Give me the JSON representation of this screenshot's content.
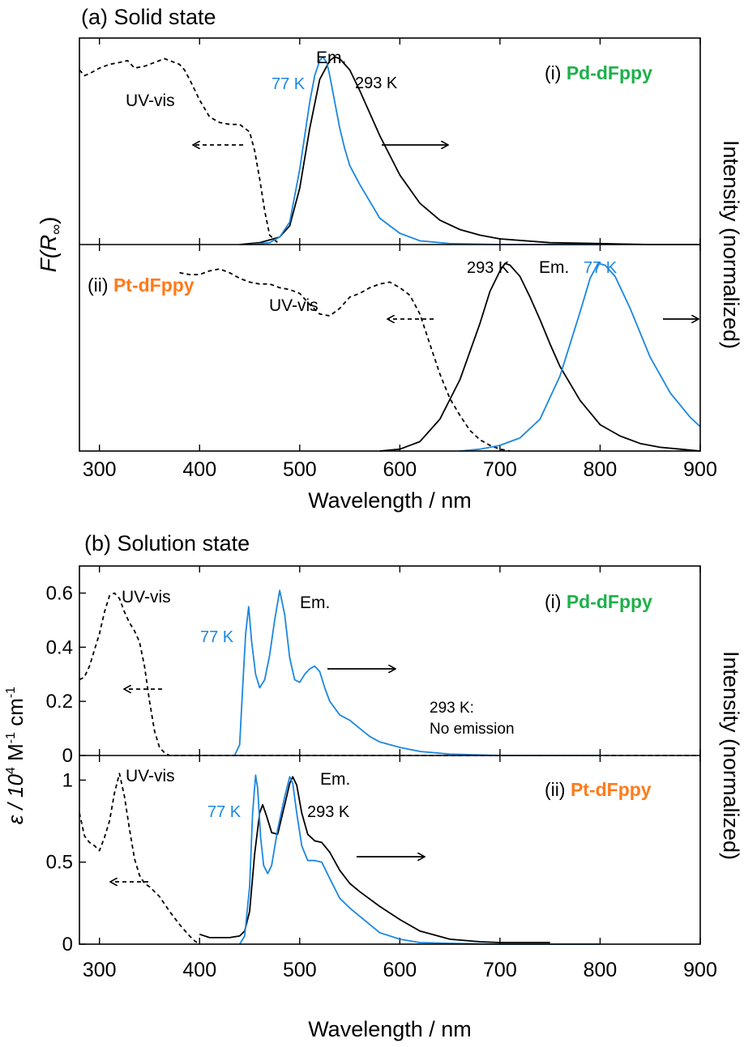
{
  "colors": {
    "blue": "#1b87e0",
    "black": "#000000",
    "green": "#1fb04b",
    "orange": "#ff7a1a"
  },
  "chart_data": [
    {
      "type": "line",
      "panel_title": "(a) Solid state",
      "xlabel": "Wavelength / nm",
      "left_ylabel_prefix": "F(R",
      "left_ylabel_subscript": "∞",
      "left_ylabel_suffix": ")",
      "right_ylabel": "Intensity (normalized)",
      "xlim": [
        280,
        900
      ],
      "xticks": [
        300,
        400,
        500,
        600,
        700,
        800,
        900
      ],
      "grid": false,
      "subplots": [
        {
          "label_prefix": "(i) ",
          "label_name": "Pd-dFppy",
          "label_color": "green",
          "annotations": {
            "em": "Em.",
            "t77": "77 K",
            "t293": "293 K",
            "uvvis": "UV-vis"
          },
          "series": [
            {
              "style": "dashed",
              "color": "black",
              "x": [
                280,
                285,
                290,
                300,
                310,
                320,
                328,
                335,
                345,
                355,
                365,
                370,
                380,
                385,
                390,
                400,
                410,
                420,
                430,
                440,
                450,
                455,
                460,
                465,
                470,
                480
              ],
              "y": [
                0.93,
                0.9,
                0.91,
                0.94,
                0.96,
                0.97,
                0.98,
                0.94,
                0.95,
                0.97,
                0.99,
                0.98,
                0.96,
                0.93,
                0.88,
                0.77,
                0.68,
                0.65,
                0.64,
                0.64,
                0.6,
                0.5,
                0.35,
                0.18,
                0.05,
                0.0
              ]
            },
            {
              "style": "solid",
              "color": "black",
              "x": [
                440,
                460,
                480,
                490,
                500,
                510,
                520,
                530,
                535,
                540,
                550,
                560,
                580,
                600,
                620,
                640,
                660,
                680,
                700,
                750,
                800,
                850,
                900
              ],
              "y": [
                0,
                0.01,
                0.04,
                0.1,
                0.3,
                0.62,
                0.88,
                0.98,
                1.0,
                0.99,
                0.93,
                0.82,
                0.58,
                0.37,
                0.22,
                0.13,
                0.08,
                0.05,
                0.03,
                0.01,
                0.005,
                0,
                0
              ]
            },
            {
              "style": "solid",
              "color": "blue",
              "x": [
                450,
                470,
                480,
                490,
                500,
                505,
                510,
                515,
                520,
                523,
                527,
                530,
                535,
                540,
                545,
                550,
                560,
                570,
                580,
                600,
                620,
                650,
                700,
                800
              ],
              "y": [
                0,
                0.01,
                0.04,
                0.12,
                0.4,
                0.58,
                0.76,
                0.9,
                0.98,
                1.0,
                0.97,
                0.9,
                0.76,
                0.62,
                0.51,
                0.42,
                0.32,
                0.23,
                0.14,
                0.06,
                0.02,
                0.005,
                0,
                0
              ]
            }
          ]
        },
        {
          "label_prefix": "(ii) ",
          "label_name": "Pt-dFppy",
          "label_color": "orange",
          "annotations": {
            "em": "Em.",
            "t77": "77 K",
            "t293": "293 K",
            "uvvis": "UV-vis"
          },
          "series": [
            {
              "style": "dashed",
              "color": "black",
              "x": [
                380,
                390,
                400,
                410,
                420,
                430,
                440,
                450,
                460,
                470,
                480,
                490,
                500,
                510,
                520,
                530,
                540,
                550,
                560,
                570,
                580,
                590,
                600,
                610,
                620,
                630,
                640,
                650,
                660,
                670,
                680,
                690,
                700,
                710
              ],
              "y": [
                0.95,
                0.94,
                0.94,
                0.96,
                0.97,
                0.95,
                0.92,
                0.9,
                0.89,
                0.89,
                0.87,
                0.86,
                0.84,
                0.78,
                0.73,
                0.72,
                0.76,
                0.82,
                0.84,
                0.87,
                0.89,
                0.9,
                0.87,
                0.83,
                0.73,
                0.57,
                0.41,
                0.28,
                0.19,
                0.11,
                0.06,
                0.03,
                0.01,
                0
              ]
            },
            {
              "style": "solid",
              "color": "black",
              "x": [
                580,
                600,
                620,
                640,
                660,
                680,
                690,
                700,
                705,
                710,
                720,
                730,
                740,
                750,
                760,
                780,
                800,
                820,
                840,
                860,
                880,
                900
              ],
              "y": [
                0,
                0.01,
                0.05,
                0.17,
                0.38,
                0.68,
                0.85,
                0.96,
                1.0,
                0.99,
                0.93,
                0.82,
                0.7,
                0.57,
                0.45,
                0.27,
                0.14,
                0.08,
                0.04,
                0.02,
                0.01,
                0
              ]
            },
            {
              "style": "solid",
              "color": "blue",
              "x": [
                660,
                680,
                700,
                720,
                740,
                760,
                780,
                790,
                798,
                805,
                815,
                830,
                850,
                870,
                890,
                900
              ],
              "y": [
                0,
                0.01,
                0.03,
                0.07,
                0.17,
                0.4,
                0.74,
                0.92,
                1.0,
                0.99,
                0.93,
                0.76,
                0.5,
                0.31,
                0.18,
                0.13
              ]
            }
          ]
        }
      ]
    },
    {
      "type": "line",
      "panel_title": "(b) Solution state",
      "xlabel": "Wavelength / nm",
      "left_ylabel_main": "ε / 10",
      "left_ylabel_sup1": "4",
      "left_ylabel_mid": " M",
      "left_ylabel_sup2": "-1",
      "left_ylabel_mid2": " cm",
      "left_ylabel_sup3": "-1",
      "right_ylabel": "Intensity (normalized)",
      "xlim": [
        280,
        900
      ],
      "xticks": [
        300,
        400,
        500,
        600,
        700,
        800,
        900
      ],
      "grid": false,
      "subplots": [
        {
          "label_prefix": "(i) ",
          "label_name": "Pd-dFppy",
          "label_color": "green",
          "ylim": [
            0,
            0.7
          ],
          "yticks": [
            0,
            0.2,
            0.4,
            0.6
          ],
          "yticklabels": [
            "0",
            "0.2",
            "0.4",
            "0.6"
          ],
          "annotations": {
            "uvvis": "UV-vis",
            "em": "Em.",
            "t77": "77 K",
            "t293a": "293 K:",
            "t293b": "No emission"
          },
          "series": [
            {
              "style": "dashed",
              "color": "black",
              "x": [
                280,
                285,
                290,
                300,
                305,
                310,
                315,
                320,
                325,
                330,
                335,
                340,
                345,
                350,
                355,
                360,
                365,
                370,
                380,
                400,
                500,
                600,
                700,
                800,
                900
              ],
              "y": [
                0.28,
                0.29,
                0.33,
                0.45,
                0.53,
                0.59,
                0.6,
                0.58,
                0.53,
                0.49,
                0.46,
                0.42,
                0.33,
                0.2,
                0.09,
                0.03,
                0.01,
                0,
                0,
                0,
                0,
                0,
                0,
                0,
                0
              ]
            },
            {
              "style": "solid",
              "color": "blue",
              "x": [
                435,
                440,
                443,
                446,
                449,
                452,
                456,
                460,
                465,
                470,
                475,
                480,
                485,
                490,
                495,
                500,
                505,
                510,
                515,
                520,
                525,
                530,
                540,
                550,
                560,
                570,
                580,
                600,
                620,
                650,
                700,
                800
              ],
              "y": [
                0,
                0.04,
                0.25,
                0.45,
                0.55,
                0.42,
                0.3,
                0.25,
                0.28,
                0.37,
                0.5,
                0.61,
                0.52,
                0.36,
                0.28,
                0.27,
                0.3,
                0.32,
                0.33,
                0.31,
                0.25,
                0.2,
                0.15,
                0.13,
                0.1,
                0.07,
                0.05,
                0.03,
                0.015,
                0.005,
                0,
                0
              ]
            }
          ]
        },
        {
          "label_prefix": "(ii) ",
          "label_name": "Pt-dFppy",
          "label_color": "orange",
          "ylim": [
            0,
            1.15
          ],
          "yticks": [
            0,
            0.5,
            1
          ],
          "yticklabels": [
            "0",
            "0.5",
            "1"
          ],
          "annotations": {
            "uvvis": "UV-vis",
            "em": "Em.",
            "t77": "77 K",
            "t293": "293 K"
          },
          "series": [
            {
              "style": "dashed",
              "color": "black",
              "x": [
                280,
                285,
                290,
                295,
                300,
                305,
                310,
                315,
                320,
                325,
                330,
                335,
                340,
                345,
                350,
                360,
                370,
                380,
                390,
                395,
                400
              ],
              "y": [
                0.8,
                0.66,
                0.62,
                0.6,
                0.57,
                0.65,
                0.75,
                0.92,
                1.04,
                0.9,
                0.7,
                0.52,
                0.42,
                0.37,
                0.35,
                0.29,
                0.2,
                0.12,
                0.05,
                0.02,
                0
              ]
            },
            {
              "style": "solid",
              "color": "black",
              "x": [
                400,
                410,
                420,
                430,
                440,
                445,
                450,
                455,
                460,
                463,
                467,
                472,
                478,
                485,
                490,
                493,
                497,
                502,
                508,
                515,
                522,
                530,
                540,
                550,
                560,
                580,
                600,
                620,
                650,
                680,
                700,
                720,
                750
              ],
              "y": [
                0.06,
                0.04,
                0.04,
                0.04,
                0.05,
                0.08,
                0.2,
                0.55,
                0.8,
                0.85,
                0.78,
                0.68,
                0.67,
                0.85,
                0.98,
                1.02,
                0.97,
                0.8,
                0.67,
                0.63,
                0.62,
                0.56,
                0.45,
                0.37,
                0.32,
                0.23,
                0.15,
                0.08,
                0.03,
                0.015,
                0.01,
                0.01,
                0.01
              ]
            },
            {
              "style": "solid",
              "color": "blue",
              "x": [
                440,
                445,
                450,
                453,
                456,
                458,
                461,
                464,
                468,
                472,
                478,
                485,
                490,
                493,
                497,
                502,
                508,
                515,
                522,
                530,
                540,
                550,
                560,
                580,
                600,
                620,
                650,
                700,
                750,
                800
              ],
              "y": [
                0,
                0.05,
                0.35,
                0.8,
                1.03,
                0.95,
                0.65,
                0.48,
                0.43,
                0.48,
                0.7,
                0.9,
                1.02,
                0.98,
                0.8,
                0.6,
                0.51,
                0.51,
                0.5,
                0.4,
                0.28,
                0.22,
                0.17,
                0.07,
                0.03,
                0.01,
                0.005,
                0,
                0,
                0
              ]
            }
          ]
        }
      ]
    }
  ]
}
